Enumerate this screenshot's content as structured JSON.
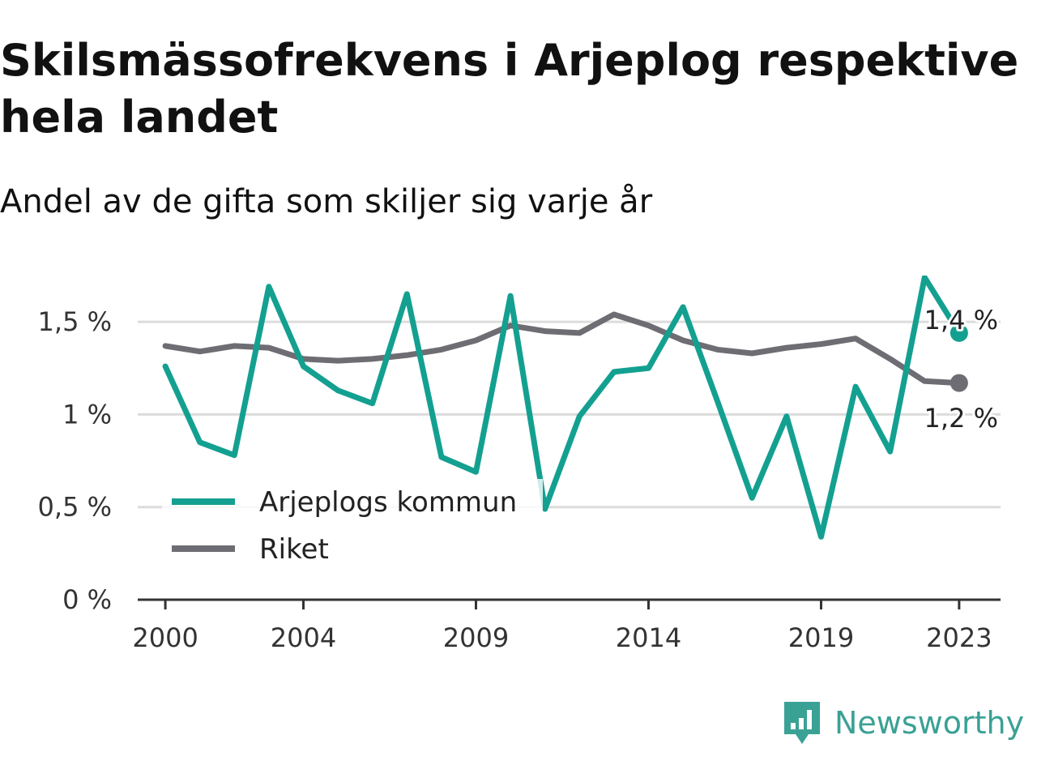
{
  "title": "Skilsmässofrekvens i Arjeplog respektive hela landet",
  "subtitle": "Andel av de gifta som skiljer sig varje år",
  "brand": {
    "name": "Newsworthy",
    "icon": "newsworthy-logo-icon",
    "color": "#3aa195"
  },
  "chart_data": {
    "type": "line",
    "x": [
      2000,
      2001,
      2002,
      2003,
      2004,
      2005,
      2006,
      2007,
      2008,
      2009,
      2010,
      2011,
      2012,
      2013,
      2014,
      2015,
      2016,
      2017,
      2018,
      2019,
      2020,
      2021,
      2022,
      2023
    ],
    "x_ticks": [
      2000,
      2004,
      2009,
      2014,
      2019,
      2023
    ],
    "x_tick_labels": [
      "2000",
      "2004",
      "2009",
      "2014",
      "2019",
      "2023"
    ],
    "y_ticks": [
      0,
      0.5,
      1,
      1.5
    ],
    "y_tick_labels": [
      "0 %",
      "0,5 %",
      "1 %",
      "1,5 %"
    ],
    "ylim": [
      0,
      1.75
    ],
    "xlim": [
      1999.2,
      2024.2
    ],
    "grid": true,
    "legend_position": "bottom-left",
    "series": [
      {
        "name": "Arjeplogs kommun",
        "color": "#14a090",
        "values": [
          1.26,
          0.85,
          0.78,
          1.69,
          1.26,
          1.13,
          1.06,
          1.65,
          0.77,
          0.69,
          1.64,
          0.49,
          0.99,
          1.23,
          1.25,
          1.58,
          1.07,
          0.55,
          0.99,
          0.34,
          1.15,
          0.8,
          1.74,
          1.44
        ],
        "end_label": "1,4 %"
      },
      {
        "name": "Riket",
        "color": "#6e6d73",
        "values": [
          1.37,
          1.34,
          1.37,
          1.36,
          1.3,
          1.29,
          1.3,
          1.32,
          1.35,
          1.4,
          1.48,
          1.45,
          1.44,
          1.54,
          1.48,
          1.4,
          1.35,
          1.33,
          1.36,
          1.38,
          1.41,
          1.3,
          1.18,
          1.17
        ],
        "end_label": "1,2 %"
      }
    ]
  }
}
